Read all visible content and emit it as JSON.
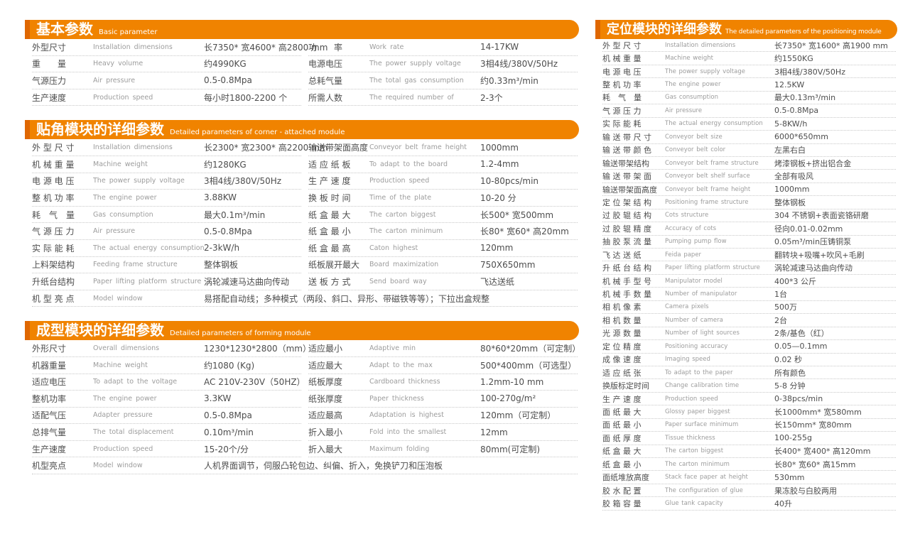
{
  "colors": {
    "header_orange": "#F08300",
    "header_accent": "#DF6702",
    "label_text": "#4d4d4d",
    "sub_text": "#9c9c9c",
    "divider": "#c8c8c8"
  },
  "sections": [
    {
      "title_zh": "基本参数",
      "title_en": "Basic parameter",
      "columns": [
        [
          {
            "zh": "外型尺寸",
            "en": "Installation dimensions",
            "v": "长7350* 宽4600* 高2800 mm"
          },
          {
            "zh": "重　　量",
            "en": "Heavy volume",
            "v": "约4990KG"
          },
          {
            "zh": "气源压力",
            "en": "Air pressure",
            "v": "0.5-0.8Mpa"
          },
          {
            "zh": "生产速度",
            "en": "Production speed",
            "v": "每小时1800-2200 个"
          }
        ],
        [
          {
            "zh": "功　　率",
            "en": "Work rate",
            "v": "14-17KW"
          },
          {
            "zh": "电源电压",
            "en": "The power supply voltage",
            "v": "3相4线/380V/50Hz"
          },
          {
            "zh": "总耗气量",
            "en": "The total gas consumption",
            "v": "约0.33m³/min"
          },
          {
            "zh": "所需人数",
            "en": "The required number of",
            "v": "2-3个"
          }
        ]
      ],
      "span_rows": []
    },
    {
      "title_zh": "贴角模块的详细参数",
      "title_en": "Detailed parameters of corner - attached module",
      "columns": [
        [
          {
            "zh": "外 型 尺 寸",
            "en": "Installation dimensions",
            "v": "长2300* 宽2300* 高2200 mm"
          },
          {
            "zh": "机 械 重 量",
            "en": "Machine weight",
            "v": "约1280KG"
          },
          {
            "zh": "电 源 电 压",
            "en": "The power supply voltage",
            "v": "3相4线/380V/50Hz"
          },
          {
            "zh": "整 机 功 率",
            "en": "The engine power",
            "v": "3.88KW"
          },
          {
            "zh": "耗　气　量",
            "en": "Gas consumption",
            "v": "最大0.1m³/min"
          },
          {
            "zh": "气 源 压 力",
            "en": "Air pressure",
            "v": "0.5-0.8Mpa"
          },
          {
            "zh": "实 际 能 耗",
            "en": "The actual energy consumption",
            "v": "2-3kW/h"
          },
          {
            "zh": "上料架结构",
            "en": "Feeding frame structure",
            "v": "整体钢板"
          },
          {
            "zh": "升纸台结构",
            "en": "Paper lifting platform structure",
            "v": "涡轮减速马达曲向传动"
          }
        ],
        [
          {
            "zh": "输送带架面高度",
            "en": "Conveyor belt frame height",
            "v": "1000mm"
          },
          {
            "zh": "适 应 纸 板",
            "en": "To adapt to the board",
            "v": "1.2-4mm"
          },
          {
            "zh": "生 产 速 度",
            "en": "Production speed",
            "v": "10-80pcs/min"
          },
          {
            "zh": "换 板 时 间",
            "en": "Time of the plate",
            "v": "10-20 分"
          },
          {
            "zh": "纸 盒 最 大",
            "en": "The carton biggest",
            "v": "长500* 宽500mm"
          },
          {
            "zh": "纸 盒 最 小",
            "en": "The carton minimum",
            "v": "长80* 宽60* 高20mm"
          },
          {
            "zh": "纸 盒 最 高",
            "en": "Caton highest",
            "v": "120mm"
          },
          {
            "zh": "纸板展开最大",
            "en": "Board maximization",
            "v": "750X650mm"
          },
          {
            "zh": "送 板 方 式",
            "en": "Send board way",
            "v": "飞达送纸"
          }
        ]
      ],
      "span_rows": [
        {
          "zh": "机 型 亮 点",
          "en": "Model window",
          "v": "易搭配自动线；多种模式（两段、斜口、异形、带磁铁等等）；下拉出盒规整"
        }
      ]
    },
    {
      "title_zh": "成型模块的详细参数",
      "title_en": "Detailed parameters of forming module",
      "columns": [
        [
          {
            "zh": "外形尺寸",
            "en": "Overall dimensions",
            "v": "1230*1230*2800（mm）"
          },
          {
            "zh": "机器重量",
            "en": "Machine weight",
            "v": "约1080 (Kg)"
          },
          {
            "zh": "适应电压",
            "en": "To adapt to the voltage",
            "v": "AC 210V-230V（50HZ）"
          },
          {
            "zh": "整机功率",
            "en": "The engine power",
            "v": "3.3KW"
          },
          {
            "zh": "适配气压",
            "en": "Adapter pressure",
            "v": "0.5-0.8Mpa"
          },
          {
            "zh": "总排气量",
            "en": "The total displacement",
            "v": "0.10m³/min"
          },
          {
            "zh": "生产速度",
            "en": "Production speed",
            "v": "15-20个/分"
          }
        ],
        [
          {
            "zh": "适应最小",
            "en": "Adaptive min",
            "v": "80*60*20mm（可定制）"
          },
          {
            "zh": "适应最大",
            "en": "Adapt to the max",
            "v": "500*400mm（可选型）"
          },
          {
            "zh": "纸板厚度",
            "en": "Cardboard thickness",
            "v": "1.2mm-10 mm"
          },
          {
            "zh": "纸张厚度",
            "en": "Paper thickness",
            "v": "100-270g/m²"
          },
          {
            "zh": "适应最高",
            "en": "Adaptation is highest",
            "v": "120mm（可定制）"
          },
          {
            "zh": "折入最小",
            "en": "Fold into the smallest",
            "v": "12mm"
          },
          {
            "zh": "折入最大",
            "en": "Maximum folding",
            "v": "80mm(可定制)"
          }
        ]
      ],
      "span_rows": [
        {
          "zh": "机型亮点",
          "en": "Model window",
          "v": "人机界面调节，伺服凸轮包边、纠偏、折入，免换铲刀和压泡板"
        }
      ]
    },
    {
      "title_zh": "定位模块的详细参数",
      "title_en": "The detailed parameters of the positioning module",
      "columns": [
        [
          {
            "zh": "外 型 尺 寸",
            "en": "Installation dimensions",
            "v": "长7350* 宽1600* 高1900 mm"
          },
          {
            "zh": "机 械 重 量",
            "en": "Machine weight",
            "v": "约1550KG"
          },
          {
            "zh": "电 源 电 压",
            "en": "The power supply voltage",
            "v": "3相4线/380V/50Hz"
          },
          {
            "zh": "整 机 功 率",
            "en": "The engine power",
            "v": "12.5KW"
          },
          {
            "zh": "耗　气　量",
            "en": "Gas consumption",
            "v": "最大0.13m³/min"
          },
          {
            "zh": "气 源 压 力",
            "en": "Air pressure",
            "v": "0.5-0.8Mpa"
          },
          {
            "zh": "实 际 能 耗",
            "en": "The actual energy consumption",
            "v": "5-8KW/h"
          },
          {
            "zh": "输 送 带 尺 寸",
            "en": "Conveyor belt size",
            "v": "6000*650mm"
          },
          {
            "zh": "输 送 带 颜 色",
            "en": "Conveyor belt color",
            "v": "左黑右白"
          },
          {
            "zh": "输送带架结构",
            "en": "Conveyor belt frame structure",
            "v": "烤漆钢板+挤出铝合金"
          },
          {
            "zh": "输 送 带 架 面",
            "en": "Conveyor belt shelf surface",
            "v": "全部有吸风"
          },
          {
            "zh": "输送带架面高度",
            "en": "Conveyor belt frame height",
            "v": "1000mm"
          },
          {
            "zh": "定 位 架 结 构",
            "en": "Positioning frame structure",
            "v": "整体钢板"
          },
          {
            "zh": "过 胶 辊 结 构",
            "en": "Cots structure",
            "v": "304 不锈钢+表面瓷铬研磨"
          },
          {
            "zh": "过 胶 辊 精 度",
            "en": "Accuracy of cots",
            "v": "径向0.01-0.02mm"
          },
          {
            "zh": "抽 胶 泵 流 量",
            "en": "Pumping pump flow",
            "v": "0.05m³/min压铸铜泵"
          },
          {
            "zh": "飞 达 送 纸",
            "en": "Feida paper",
            "v": "翻转块+吸嘴+吹风+毛刷"
          },
          {
            "zh": "升 纸 台 结 构",
            "en": "Paper lifting platform structure",
            "v": "涡轮减速马达曲向传动"
          },
          {
            "zh": "机 械 手 型 号",
            "en": "Manipulator model",
            "v": "400*3 公斤"
          },
          {
            "zh": "机 械 手 数 量",
            "en": "Number of manipulator",
            "v": "1台"
          },
          {
            "zh": "相 机 像 素",
            "en": "Camera pixels",
            "v": "500万"
          },
          {
            "zh": "相 机 数 量",
            "en": "Number of camera",
            "v": "2台"
          },
          {
            "zh": "光 源 数 量",
            "en": "Number of light sources",
            "v": "2条/基色（红）"
          },
          {
            "zh": "定 位 精 度",
            "en": "Positioning accuracy",
            "v": "0.05—0.1mm"
          },
          {
            "zh": "成 像 速 度",
            "en": "Imaging speed",
            "v": "0.02 秒"
          },
          {
            "zh": "适 应 纸 张",
            "en": "To adapt to the paper",
            "v": "所有颜色"
          },
          {
            "zh": "换版标定时间",
            "en": "Change calibration time",
            "v": "5-8 分钟"
          },
          {
            "zh": "生 产 速 度",
            "en": "Production speed",
            "v": "0-38pcs/min"
          },
          {
            "zh": "面 纸 最 大",
            "en": "Glossy paper biggest",
            "v": "长1000mm* 宽580mm"
          },
          {
            "zh": "面 纸 最 小",
            "en": "Paper surface minimum",
            "v": "长150mm* 宽80mm"
          },
          {
            "zh": "面 纸 厚 度",
            "en": "Tissue thickness",
            "v": "100-255g"
          },
          {
            "zh": "纸 盒 最 大",
            "en": "The carton biggest",
            "v": "长400* 宽400* 高120mm"
          },
          {
            "zh": "纸 盒 最 小",
            "en": "The carton minimum",
            "v": "长80* 宽60* 高15mm"
          },
          {
            "zh": "面纸堆放高度",
            "en": "Stack face paper at height",
            "v": "530mm"
          },
          {
            "zh": "胶 水 配 置",
            "en": "The configuration of glue",
            "v": "果冻胶与白胶两用"
          },
          {
            "zh": "胶 箱 容 量",
            "en": "Glue tank capacity",
            "v": "40升"
          }
        ]
      ],
      "span_rows": []
    }
  ]
}
